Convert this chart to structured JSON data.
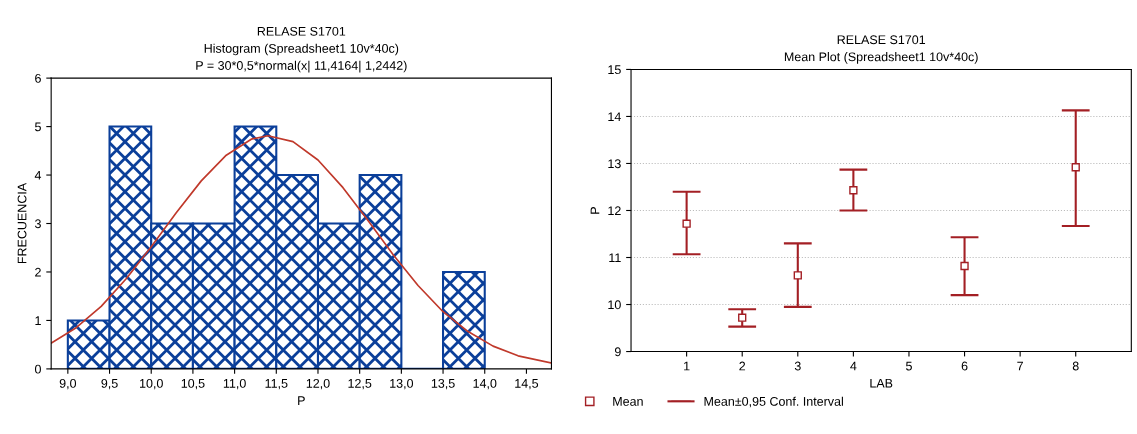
{
  "chart_data": [
    {
      "type": "histogram",
      "title": "RELASE S1701",
      "subtitle": "Histogram (Spreadsheet1 10v*40c)\nP = 30*0,5*normal(x| 11,4164| 1,2442)",
      "xlabel": "P",
      "ylabel": "FRECUENCIA",
      "bins": [
        9.0,
        9.5,
        10.0,
        10.5,
        11.0,
        11.5,
        12.0,
        12.5,
        13.0,
        13.5,
        14.0
      ],
      "values": [
        1,
        5,
        3,
        3,
        5,
        4,
        3,
        4,
        0,
        2
      ],
      "color": "#0b3f9a",
      "series": [
        {
          "type": "line",
          "color": "#c0392b",
          "x": [
            8.8,
            9.1,
            9.4,
            9.7,
            10.0,
            10.3,
            10.6,
            10.9,
            11.2,
            11.4,
            11.7,
            12.0,
            12.3,
            12.6,
            12.9,
            13.2,
            13.5,
            13.8,
            14.1,
            14.4,
            14.8
          ],
          "values": [
            0.53,
            0.85,
            1.29,
            1.86,
            2.52,
            3.22,
            3.88,
            4.41,
            4.74,
            4.81,
            4.69,
            4.31,
            3.74,
            3.06,
            2.36,
            1.72,
            1.18,
            0.77,
            0.47,
            0.27,
            0.12
          ]
        }
      ],
      "xlim": [
        8.8,
        14.8
      ],
      "xticks": [
        {
          "value": 9.0,
          "label": "9,0"
        },
        {
          "value": 9.5,
          "label": "9,5"
        },
        {
          "value": 10.0,
          "label": "10,0"
        },
        {
          "value": 10.5,
          "label": "10,5"
        },
        {
          "value": 11.0,
          "label": "11,0"
        },
        {
          "value": 11.5,
          "label": "11,5"
        },
        {
          "value": 12.0,
          "label": "12,0"
        },
        {
          "value": 12.5,
          "label": "12,5"
        },
        {
          "value": 13.0,
          "label": "13,0"
        },
        {
          "value": 13.5,
          "label": "13,5"
        },
        {
          "value": 14.0,
          "label": "14,0"
        },
        {
          "value": 14.5,
          "label": "14,5"
        }
      ],
      "ylim": [
        0,
        6
      ],
      "yticks": [
        0,
        1,
        2,
        3,
        4,
        5,
        6
      ],
      "grid": false,
      "legend": false
    },
    {
      "type": "scatter",
      "title": "RELASE S1701",
      "subtitle": "Mean Plot (Spreadsheet1 10v*40c)",
      "xlabel": "LAB",
      "ylabel": "P",
      "series": [
        {
          "name": "Mean",
          "color": "#a31f24",
          "marker": "square",
          "x": [
            1,
            2,
            3,
            4,
            6,
            8
          ],
          "values": [
            11.72,
            9.72,
            10.62,
            12.43,
            10.82,
            12.92
          ],
          "errors": [
            [
              11.07,
              12.4
            ],
            [
              9.53,
              9.9
            ],
            [
              9.95,
              11.3
            ],
            [
              12.0,
              12.87
            ],
            [
              10.2,
              11.43
            ],
            [
              11.67,
              14.13
            ]
          ]
        }
      ],
      "annotations": [
        "Mean±0,95 Conf. Interval"
      ],
      "xlim": [
        0,
        9
      ],
      "xticks": [
        1,
        2,
        3,
        4,
        5,
        6,
        7,
        8
      ],
      "ylim": [
        9,
        15
      ],
      "yticks": [
        9,
        10,
        11,
        12,
        13,
        14,
        15
      ],
      "grid": "y",
      "legend": "bottom left"
    }
  ]
}
